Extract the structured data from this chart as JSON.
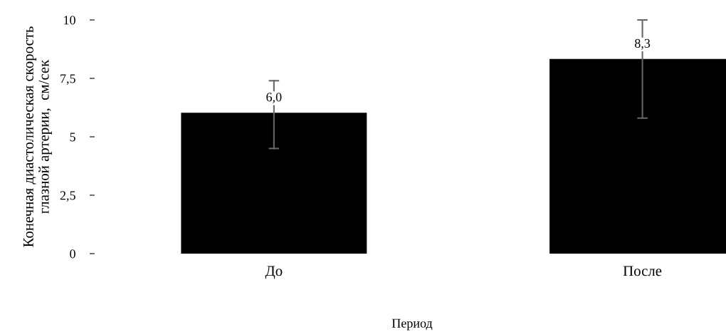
{
  "chart_data": {
    "type": "bar",
    "xlabel": "Период",
    "ylabel": "Конечная диастолическая скорость\nглазной артерии,  см/сек",
    "categories": [
      "До",
      "После"
    ],
    "values": [
      6.0,
      8.3
    ],
    "value_labels": [
      "6,0",
      "8,3"
    ],
    "errors": [
      [
        4.5,
        7.4
      ],
      [
        5.8,
        10
      ]
    ],
    "color": "#000000",
    "ylim": [
      0,
      10
    ],
    "yticks": [
      0,
      {
        "value": 2.5,
        "label": "2,5"
      },
      5,
      {
        "value": 7.5,
        "label": "7,5"
      },
      10
    ],
    "grid": false,
    "legend": false
  }
}
